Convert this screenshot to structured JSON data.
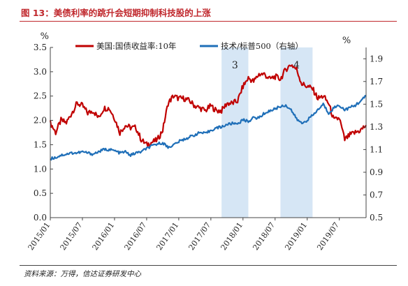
{
  "figure": {
    "title": "图 13：美债利率的跳升会短期抑制科技股的上涨",
    "source": "资料来源：万得，信达证券研发中心"
  },
  "chart_data": {
    "type": "line",
    "x": [
      "2015/01",
      "2015/07",
      "2016/01",
      "2016/07",
      "2017/01",
      "2017/07",
      "2018/01",
      "2018/07",
      "2019/01",
      "2019/07"
    ],
    "ylim_left": [
      0.0,
      3.5
    ],
    "ylim_right": [
      0.5,
      2.0
    ],
    "left_ticks": [
      "0.0",
      "0.5",
      "1.0",
      "1.5",
      "2.0",
      "2.5",
      "3.0",
      "3.5"
    ],
    "right_ticks": [
      "0.5",
      "0.7",
      "0.9",
      "1.1",
      "1.3",
      "1.5",
      "1.7",
      "1.9"
    ],
    "left_unit": "%",
    "right_unit": "%",
    "legend_position": "top",
    "series": [
      {
        "name": "美国:国债收益率:10年",
        "axis": "left",
        "color": "#c00000",
        "values": [
          [
            "2015/01",
            1.95
          ],
          [
            "2015/02",
            1.75
          ],
          [
            "2015/03",
            2.0
          ],
          [
            "2015/04",
            1.95
          ],
          [
            "2015/05",
            2.15
          ],
          [
            "2015/06",
            2.35
          ],
          [
            "2015/07",
            2.3
          ],
          [
            "2015/08",
            2.15
          ],
          [
            "2015/09",
            2.2
          ],
          [
            "2015/10",
            2.05
          ],
          [
            "2015/11",
            2.25
          ],
          [
            "2015/12",
            2.25
          ],
          [
            "2016/01",
            2.05
          ],
          [
            "2016/02",
            1.75
          ],
          [
            "2016/03",
            1.9
          ],
          [
            "2016/04",
            1.85
          ],
          [
            "2016/05",
            1.85
          ],
          [
            "2016/06",
            1.6
          ],
          [
            "2016/07",
            1.5
          ],
          [
            "2016/08",
            1.55
          ],
          [
            "2016/09",
            1.6
          ],
          [
            "2016/10",
            1.8
          ],
          [
            "2016/11",
            2.35
          ],
          [
            "2016/12",
            2.5
          ],
          [
            "2017/01",
            2.45
          ],
          [
            "2017/02",
            2.45
          ],
          [
            "2017/03",
            2.4
          ],
          [
            "2017/04",
            2.3
          ],
          [
            "2017/05",
            2.25
          ],
          [
            "2017/06",
            2.2
          ],
          [
            "2017/07",
            2.3
          ],
          [
            "2017/08",
            2.2
          ],
          [
            "2017/09",
            2.2
          ],
          [
            "2017/10",
            2.35
          ],
          [
            "2017/11",
            2.35
          ],
          [
            "2017/12",
            2.4
          ],
          [
            "2018/01",
            2.7
          ],
          [
            "2018/02",
            2.87
          ],
          [
            "2018/03",
            2.8
          ],
          [
            "2018/04",
            2.95
          ],
          [
            "2018/05",
            2.95
          ],
          [
            "2018/06",
            2.85
          ],
          [
            "2018/07",
            2.9
          ],
          [
            "2018/08",
            2.85
          ],
          [
            "2018/09",
            3.05
          ],
          [
            "2018/10",
            3.15
          ],
          [
            "2018/11",
            3.05
          ],
          [
            "2018/12",
            2.75
          ],
          [
            "2019/01",
            2.7
          ],
          [
            "2019/02",
            2.65
          ],
          [
            "2019/03",
            2.45
          ],
          [
            "2019/04",
            2.5
          ],
          [
            "2019/05",
            2.35
          ],
          [
            "2019/06",
            2.0
          ],
          [
            "2019/07",
            2.05
          ],
          [
            "2019/08",
            1.6
          ],
          [
            "2019/09",
            1.7
          ],
          [
            "2019/10",
            1.75
          ],
          [
            "2019/11",
            1.8
          ],
          [
            "2019/12",
            1.9
          ]
        ]
      },
      {
        "name": "技术/标普500（右轴）",
        "axis": "right",
        "color": "#1f6fb8",
        "values": [
          [
            "2015/01",
            1.02
          ],
          [
            "2015/02",
            1.03
          ],
          [
            "2015/03",
            1.05
          ],
          [
            "2015/04",
            1.06
          ],
          [
            "2015/05",
            1.07
          ],
          [
            "2015/06",
            1.07
          ],
          [
            "2015/07",
            1.08
          ],
          [
            "2015/08",
            1.07
          ],
          [
            "2015/09",
            1.06
          ],
          [
            "2015/10",
            1.08
          ],
          [
            "2015/11",
            1.1
          ],
          [
            "2015/12",
            1.1
          ],
          [
            "2016/01",
            1.09
          ],
          [
            "2016/02",
            1.07
          ],
          [
            "2016/03",
            1.08
          ],
          [
            "2016/04",
            1.05
          ],
          [
            "2016/05",
            1.07
          ],
          [
            "2016/06",
            1.08
          ],
          [
            "2016/07",
            1.11
          ],
          [
            "2016/08",
            1.13
          ],
          [
            "2016/09",
            1.15
          ],
          [
            "2016/10",
            1.16
          ],
          [
            "2016/11",
            1.12
          ],
          [
            "2016/12",
            1.14
          ],
          [
            "2017/01",
            1.17
          ],
          [
            "2017/02",
            1.19
          ],
          [
            "2017/03",
            1.21
          ],
          [
            "2017/04",
            1.23
          ],
          [
            "2017/05",
            1.25
          ],
          [
            "2017/06",
            1.24
          ],
          [
            "2017/07",
            1.27
          ],
          [
            "2017/08",
            1.29
          ],
          [
            "2017/09",
            1.3
          ],
          [
            "2017/10",
            1.32
          ],
          [
            "2017/11",
            1.33
          ],
          [
            "2017/12",
            1.33
          ],
          [
            "2018/01",
            1.36
          ],
          [
            "2018/02",
            1.35
          ],
          [
            "2018/03",
            1.38
          ],
          [
            "2018/04",
            1.38
          ],
          [
            "2018/05",
            1.42
          ],
          [
            "2018/06",
            1.44
          ],
          [
            "2018/07",
            1.46
          ],
          [
            "2018/08",
            1.48
          ],
          [
            "2018/09",
            1.49
          ],
          [
            "2018/10",
            1.45
          ],
          [
            "2018/11",
            1.37
          ],
          [
            "2018/12",
            1.33
          ],
          [
            "2019/01",
            1.36
          ],
          [
            "2019/02",
            1.4
          ],
          [
            "2019/03",
            1.45
          ],
          [
            "2019/04",
            1.5
          ],
          [
            "2019/05",
            1.42
          ],
          [
            "2019/06",
            1.47
          ],
          [
            "2019/07",
            1.49
          ],
          [
            "2019/08",
            1.45
          ],
          [
            "2019/09",
            1.47
          ],
          [
            "2019/10",
            1.49
          ],
          [
            "2019/11",
            1.53
          ],
          [
            "2019/12",
            1.57
          ]
        ]
      }
    ],
    "shaded_periods": [
      {
        "label": "3",
        "start": "2017/09",
        "end": "2018/02"
      },
      {
        "label": "4",
        "start": "2018/08",
        "end": "2019/02"
      }
    ]
  }
}
